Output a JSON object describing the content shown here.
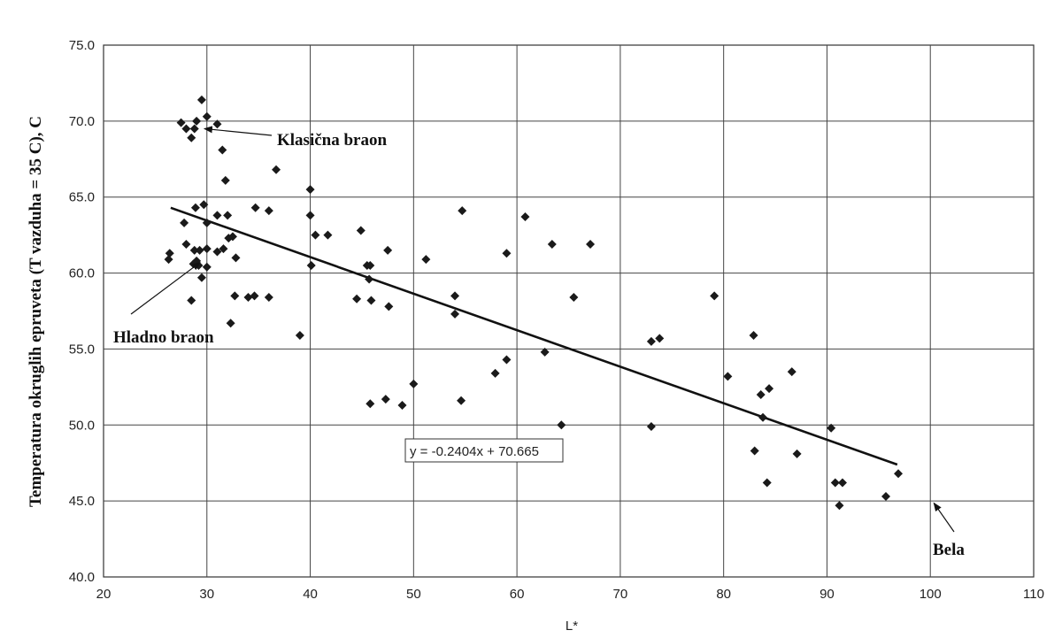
{
  "chart_data": {
    "type": "scatter",
    "title": "",
    "xlabel": "L*",
    "ylabel": "Temperatura okruglih epruveta (T vazduha = 35 C),  C",
    "xlim": [
      20,
      110
    ],
    "ylim": [
      40,
      75
    ],
    "x_ticks": [
      "20",
      "30",
      "40",
      "50",
      "60",
      "70",
      "80",
      "90",
      "100",
      "110"
    ],
    "y_ticks": [
      "40.0",
      "45.0",
      "50.0",
      "55.0",
      "60.0",
      "65.0",
      "70.0",
      "75.0"
    ],
    "grid": true,
    "marker": "diamond",
    "marker_color": "#1a1a1a",
    "trendline": {
      "slope": -0.2404,
      "intercept": 70.665,
      "x_range": [
        26.5,
        96.8
      ],
      "label": "y = -0.2404x + 70.665"
    },
    "annotations": [
      {
        "text": "Klasična braon",
        "points_to": [
          29.5,
          69.5
        ]
      },
      {
        "text": "Hladno braon",
        "points_to": [
          29,
          60.7
        ]
      },
      {
        "text": "Bela",
        "points_to": [
          100,
          45.1
        ]
      }
    ],
    "points": [
      [
        27.5,
        69.9
      ],
      [
        28,
        69.5
      ],
      [
        28.5,
        68.9
      ],
      [
        29,
        70
      ],
      [
        28.8,
        69.5
      ],
      [
        29.5,
        71.4
      ],
      [
        30,
        70.3
      ],
      [
        31,
        69.8
      ],
      [
        31.5,
        68.1
      ],
      [
        31.8,
        66.1
      ],
      [
        36.7,
        66.8
      ],
      [
        27.8,
        63.3
      ],
      [
        28.9,
        64.3
      ],
      [
        29.7,
        64.5
      ],
      [
        30,
        63.3
      ],
      [
        31,
        63.8
      ],
      [
        32,
        63.8
      ],
      [
        34.7,
        64.3
      ],
      [
        36,
        64.1
      ],
      [
        26.4,
        61.3
      ],
      [
        26.3,
        60.9
      ],
      [
        28,
        61.9
      ],
      [
        28.8,
        61.5
      ],
      [
        29.3,
        61.5
      ],
      [
        30,
        61.6
      ],
      [
        31,
        61.4
      ],
      [
        31.6,
        61.6
      ],
      [
        32.5,
        62.4
      ],
      [
        32.1,
        62.3
      ],
      [
        32.8,
        61
      ],
      [
        28.7,
        60.6
      ],
      [
        29,
        60.8
      ],
      [
        29.2,
        60.5
      ],
      [
        30,
        60.4
      ],
      [
        29.5,
        59.7
      ],
      [
        28.5,
        58.2
      ],
      [
        32.7,
        58.5
      ],
      [
        34,
        58.4
      ],
      [
        34.6,
        58.5
      ],
      [
        36,
        58.4
      ],
      [
        32.3,
        56.7
      ],
      [
        39,
        55.9
      ],
      [
        40,
        65.5
      ],
      [
        40,
        63.8
      ],
      [
        40.5,
        62.5
      ],
      [
        41.7,
        62.5
      ],
      [
        40.1,
        60.5
      ],
      [
        44.9,
        62.8
      ],
      [
        45.5,
        60.5
      ],
      [
        45.8,
        60.5
      ],
      [
        45.7,
        59.6
      ],
      [
        44.5,
        58.3
      ],
      [
        45.9,
        58.2
      ],
      [
        47.5,
        61.5
      ],
      [
        47.6,
        57.8
      ],
      [
        45.8,
        51.4
      ],
      [
        47.3,
        51.7
      ],
      [
        48.9,
        51.3
      ],
      [
        50,
        52.7
      ],
      [
        51.2,
        60.9
      ],
      [
        54.7,
        64.1
      ],
      [
        54,
        58.5
      ],
      [
        54,
        57.3
      ],
      [
        54.6,
        51.6
      ],
      [
        57.9,
        53.4
      ],
      [
        59,
        54.3
      ],
      [
        59,
        61.3
      ],
      [
        60.8,
        63.7
      ],
      [
        62.7,
        54.8
      ],
      [
        63.4,
        61.9
      ],
      [
        64.3,
        50
      ],
      [
        65.5,
        58.4
      ],
      [
        67.1,
        61.9
      ],
      [
        73,
        55.5
      ],
      [
        73.8,
        55.7
      ],
      [
        73,
        49.9
      ],
      [
        79.1,
        58.5
      ],
      [
        80.4,
        53.2
      ],
      [
        82.9,
        55.9
      ],
      [
        83,
        48.3
      ],
      [
        83.6,
        52
      ],
      [
        83.8,
        50.5
      ],
      [
        84.2,
        46.2
      ],
      [
        84.4,
        52.4
      ],
      [
        86.6,
        53.5
      ],
      [
        87.1,
        48.1
      ],
      [
        90.4,
        49.8
      ],
      [
        90.8,
        46.2
      ],
      [
        91.2,
        44.7
      ],
      [
        91.5,
        46.2
      ],
      [
        95.7,
        45.3
      ],
      [
        96.9,
        46.8
      ]
    ]
  }
}
